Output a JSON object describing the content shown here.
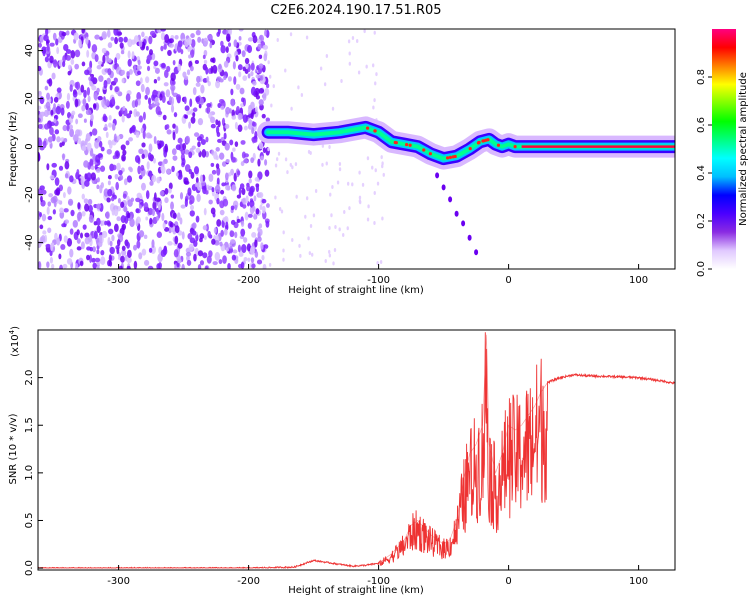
{
  "page_title": "C2E6.2024.190.17.51.R05",
  "chart_data": [
    {
      "type": "heatmap",
      "xlabel": "Height of straight line (km)",
      "ylabel": "Frequency (Hz)",
      "xlim": [
        -362,
        128
      ],
      "ylim": [
        -51,
        49
      ],
      "x_ticks": [
        -300,
        -200,
        -100,
        0,
        100
      ],
      "y_ticks": [
        -40,
        -20,
        0,
        20,
        40
      ],
      "colorbar": {
        "label": "Normalized spectral amplitude",
        "range": [
          0,
          1
        ],
        "ticks": [
          "0.0",
          "0.2",
          "0.4",
          "0.6",
          "0.8"
        ],
        "colors": [
          "#ffffff",
          "#e0c8ff",
          "#8a2be2",
          "#4b00ff",
          "#0000ff",
          "#00bfff",
          "#00ffff",
          "#00ff80",
          "#00ff00",
          "#80ff00",
          "#ffff00",
          "#ff8000",
          "#ff0000",
          "#ff0080"
        ]
      },
      "ridge": {
        "x": [
          -185,
          -170,
          -150,
          -130,
          -110,
          -100,
          -90,
          -80,
          -70,
          -60,
          -50,
          -40,
          -30,
          -22,
          -15,
          -10,
          -5,
          0,
          5,
          10,
          20,
          60,
          128
        ],
        "y": [
          6,
          6,
          5,
          6,
          8,
          6,
          2,
          1,
          0,
          -3,
          -5,
          -4,
          -1,
          2,
          3,
          1,
          0,
          1,
          0,
          0,
          0,
          0,
          0
        ]
      },
      "noise_region_x": [
        -362,
        -185
      ],
      "tail_points": [
        [
          -55,
          -12
        ],
        [
          -50,
          -17
        ],
        [
          -45,
          -22
        ],
        [
          -40,
          -28
        ],
        [
          -35,
          -32
        ],
        [
          -30,
          -38
        ],
        [
          -25,
          -44
        ]
      ]
    },
    {
      "type": "line",
      "xlabel": "Height of straight line (km)",
      "ylabel": "SNR (10 * v/v)",
      "y_multiplier_label": "(x10",
      "y_multiplier_exp": "4",
      "y_multiplier_close": ")",
      "xlim": [
        -362,
        128
      ],
      "ylim": [
        -0.02,
        2.5
      ],
      "x_ticks": [
        -300,
        -200,
        -100,
        0,
        100
      ],
      "y_ticks": [
        0.0,
        0.5,
        1.0,
        1.5,
        2.0
      ],
      "y_tick_labels": [
        "0.0",
        "0.5",
        "1.0",
        "1.5",
        "2.0"
      ],
      "series": [
        {
          "color": "#ee3333",
          "x": [
            -362,
            -300,
            -250,
            -200,
            -165,
            -150,
            -140,
            -120,
            -110,
            -100,
            -90,
            -80,
            -75,
            -70,
            -60,
            -50,
            -45,
            -40,
            -35,
            -30,
            -25,
            -20,
            -17,
            -15,
            -10,
            -5,
            0,
            5,
            10,
            15,
            20,
            25,
            30,
            40,
            50,
            60,
            80,
            100,
            110,
            120,
            128
          ],
          "y": [
            0.0,
            0.0,
            0.0,
            0.0,
            0.01,
            0.08,
            0.06,
            0.02,
            0.03,
            0.05,
            0.15,
            0.3,
            0.45,
            0.5,
            0.35,
            0.25,
            0.3,
            0.5,
            0.9,
            1.2,
            1.3,
            1.5,
            2.45,
            1.3,
            1.0,
            1.2,
            1.5,
            1.45,
            1.5,
            1.6,
            1.7,
            1.85,
            1.95,
            2.0,
            2.03,
            2.02,
            2.01,
            2.0,
            1.98,
            1.96,
            1.94
          ]
        }
      ]
    }
  ]
}
